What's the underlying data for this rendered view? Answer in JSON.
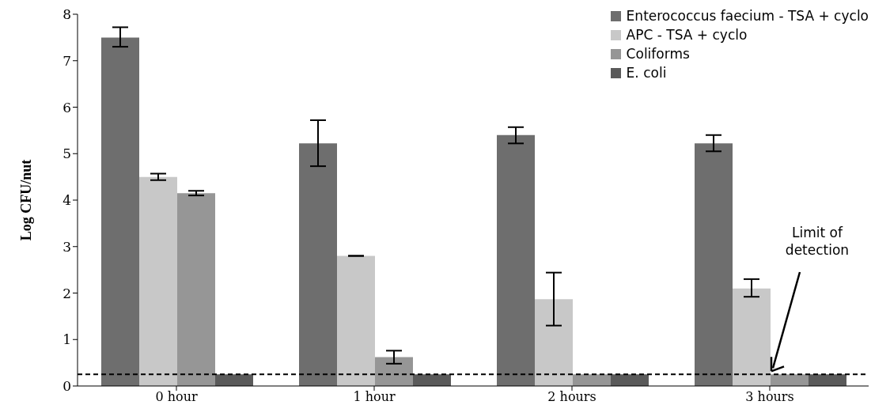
{
  "chart_data": {
    "type": "bar",
    "ylabel": "Log CFU/nut",
    "categories": [
      "0 hour",
      "1 hour",
      "2 hours",
      "3 hours"
    ],
    "series": [
      {
        "name": "Enterococcus faecium - TSA + cyclo",
        "color": "#6e6e6e",
        "values": [
          7.5,
          5.22,
          5.4,
          5.22
        ],
        "errors": [
          [
            7.3,
            7.72
          ],
          [
            4.73,
            5.72
          ],
          [
            5.22,
            5.57
          ],
          [
            5.05,
            5.4
          ]
        ]
      },
      {
        "name": "APC - TSA + cyclo",
        "color": "#c8c8c8",
        "values": [
          4.5,
          2.8,
          1.87,
          2.1
        ],
        "errors": [
          [
            4.43,
            4.57
          ],
          [
            2.8,
            2.8
          ],
          [
            1.3,
            2.44
          ],
          [
            1.92,
            2.3
          ]
        ]
      },
      {
        "name": "Coliforms",
        "color": "#969696",
        "values": [
          4.15,
          0.62,
          0.25,
          0.25
        ],
        "errors": [
          [
            4.1,
            4.2
          ],
          [
            0.48,
            0.76
          ],
          null,
          null
        ]
      },
      {
        "name": "E. coli",
        "color": "#5a5a5a",
        "values": [
          0.25,
          0.25,
          0.25,
          0.25
        ]
      }
    ],
    "ylim": [
      0,
      8
    ],
    "yticks": [
      0,
      1,
      2,
      3,
      4,
      5,
      6,
      7,
      8
    ],
    "legend": "top right",
    "ref_lines": [
      {
        "axis": "y",
        "value": 0.25,
        "color": "#000000",
        "line_style": "dashed"
      }
    ],
    "annotations": [
      {
        "text": "Limit of detection",
        "x": "3 hours",
        "y": 0.25
      }
    ]
  }
}
